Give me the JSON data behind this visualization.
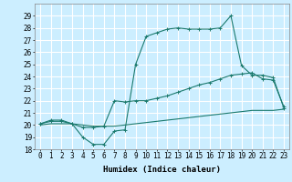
{
  "xlabel": "Humidex (Indice chaleur)",
  "bg_color": "#cceeff",
  "grid_color": "#ffffff",
  "line_color": "#1a7a6e",
  "xlim": [
    -0.5,
    23.5
  ],
  "ylim": [
    18,
    30
  ],
  "xticks": [
    0,
    1,
    2,
    3,
    4,
    5,
    6,
    7,
    8,
    9,
    10,
    11,
    12,
    13,
    14,
    15,
    16,
    17,
    18,
    19,
    20,
    21,
    22,
    23
  ],
  "yticks": [
    18,
    19,
    20,
    21,
    22,
    23,
    24,
    25,
    26,
    27,
    28,
    29
  ],
  "line1_x": [
    0,
    1,
    2,
    3,
    4,
    5,
    6,
    7,
    8,
    9,
    10,
    11,
    12,
    13,
    14,
    15,
    16,
    17,
    18,
    19,
    20,
    21,
    22,
    23
  ],
  "line1_y": [
    20.1,
    20.4,
    20.4,
    20.1,
    19.0,
    18.4,
    18.4,
    19.5,
    19.6,
    25.0,
    27.3,
    27.6,
    27.9,
    28.0,
    27.9,
    27.9,
    27.9,
    28.0,
    29.0,
    24.9,
    24.1,
    24.1,
    23.9,
    21.4
  ],
  "line2_x": [
    0,
    1,
    2,
    3,
    4,
    5,
    6,
    7,
    8,
    9,
    10,
    11,
    12,
    13,
    14,
    15,
    16,
    17,
    18,
    19,
    20,
    21,
    22,
    23
  ],
  "line2_y": [
    20.1,
    20.3,
    20.3,
    20.1,
    19.8,
    19.8,
    19.9,
    22.0,
    21.9,
    22.0,
    22.0,
    22.2,
    22.4,
    22.7,
    23.0,
    23.3,
    23.5,
    23.8,
    24.1,
    24.2,
    24.3,
    23.8,
    23.7,
    21.5
  ],
  "line3_x": [
    0,
    1,
    2,
    3,
    4,
    5,
    6,
    7,
    8,
    9,
    10,
    11,
    12,
    13,
    14,
    15,
    16,
    17,
    18,
    19,
    20,
    21,
    22,
    23
  ],
  "line3_y": [
    20.0,
    20.1,
    20.1,
    20.1,
    20.0,
    19.9,
    19.9,
    19.9,
    20.0,
    20.1,
    20.2,
    20.3,
    20.4,
    20.5,
    20.6,
    20.7,
    20.8,
    20.9,
    21.0,
    21.1,
    21.2,
    21.2,
    21.2,
    21.3
  ],
  "markersize": 3,
  "linewidth": 0.8,
  "tick_fontsize": 5.5,
  "label_fontsize": 6.5
}
